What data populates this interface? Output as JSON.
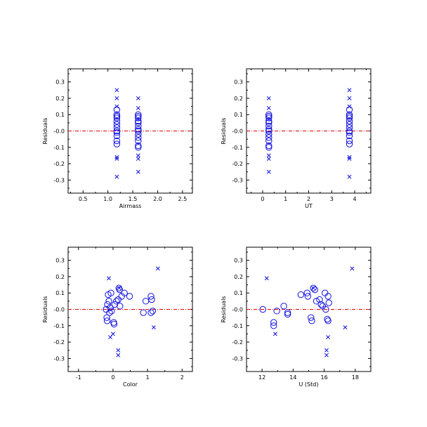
{
  "chart_data": [
    {
      "type": "scatter",
      "xlabel": "Airmass",
      "ylabel": "Residuals",
      "xlim": [
        0.2,
        2.7
      ],
      "ylim": [
        -0.38,
        0.38
      ],
      "xticks": [
        0.5,
        1.0,
        1.5,
        2.0,
        2.5
      ],
      "xtick_labels": [
        "0.5",
        "1.0",
        "1.5",
        "2.0",
        "2.5"
      ],
      "yticks": [
        -0.3,
        -0.2,
        -0.1,
        0.0,
        0.1,
        0.2,
        0.3
      ],
      "ytick_labels": [
        "-0.3",
        "-0.2",
        "-0.1",
        "-0.0",
        "0.1",
        "0.2",
        "0.3"
      ],
      "reference_line_y": 0.0,
      "circles": [
        [
          1.18,
          0.13
        ],
        [
          1.18,
          0.1
        ],
        [
          1.18,
          0.09
        ],
        [
          1.18,
          0.08
        ],
        [
          1.18,
          0.06
        ],
        [
          1.18,
          0.04
        ],
        [
          1.18,
          0.02
        ],
        [
          1.18,
          0.0
        ],
        [
          1.18,
          -0.01
        ],
        [
          1.18,
          -0.03
        ],
        [
          1.18,
          -0.06
        ],
        [
          1.18,
          -0.08
        ],
        [
          1.61,
          0.1
        ],
        [
          1.61,
          0.09
        ],
        [
          1.61,
          0.08
        ],
        [
          1.61,
          0.06
        ],
        [
          1.61,
          0.05
        ],
        [
          1.61,
          0.03
        ],
        [
          1.61,
          0.01
        ],
        [
          1.61,
          0.0
        ],
        [
          1.61,
          -0.02
        ],
        [
          1.61,
          -0.04
        ],
        [
          1.61,
          -0.06
        ],
        [
          1.61,
          -0.09
        ],
        [
          1.61,
          -0.1
        ]
      ],
      "crosses": [
        [
          1.18,
          0.25
        ],
        [
          1.18,
          0.2
        ],
        [
          1.18,
          0.15
        ],
        [
          1.18,
          -0.16
        ],
        [
          1.18,
          -0.17
        ],
        [
          1.18,
          -0.28
        ],
        [
          1.61,
          0.2
        ],
        [
          1.61,
          0.14
        ],
        [
          1.61,
          -0.15
        ],
        [
          1.61,
          -0.17
        ],
        [
          1.61,
          -0.25
        ]
      ]
    },
    {
      "type": "scatter",
      "xlabel": "UT",
      "ylabel": "Residuals",
      "xlim": [
        -0.7,
        4.7
      ],
      "ylim": [
        -0.38,
        0.38
      ],
      "xticks": [
        0,
        1,
        2,
        3,
        4
      ],
      "xtick_labels": [
        "0",
        "1",
        "2",
        "3",
        "4"
      ],
      "yticks": [
        -0.3,
        -0.2,
        -0.1,
        0.0,
        0.1,
        0.2,
        0.3
      ],
      "ytick_labels": [
        "-0.3",
        "-0.2",
        "-0.1",
        "-0.0",
        "0.1",
        "0.2",
        "0.3"
      ],
      "reference_line_y": 0.0,
      "circles": [
        [
          0.27,
          0.1
        ],
        [
          0.27,
          0.09
        ],
        [
          0.27,
          0.08
        ],
        [
          0.27,
          0.06
        ],
        [
          0.27,
          0.05
        ],
        [
          0.27,
          0.03
        ],
        [
          0.27,
          0.01
        ],
        [
          0.27,
          0.0
        ],
        [
          0.27,
          -0.02
        ],
        [
          0.27,
          -0.04
        ],
        [
          0.27,
          -0.06
        ],
        [
          0.27,
          -0.09
        ],
        [
          0.27,
          -0.1
        ],
        [
          3.77,
          0.13
        ],
        [
          3.77,
          0.1
        ],
        [
          3.77,
          0.09
        ],
        [
          3.77,
          0.08
        ],
        [
          3.77,
          0.06
        ],
        [
          3.77,
          0.04
        ],
        [
          3.77,
          0.02
        ],
        [
          3.77,
          0.0
        ],
        [
          3.77,
          -0.01
        ],
        [
          3.77,
          -0.03
        ],
        [
          3.77,
          -0.06
        ],
        [
          3.77,
          -0.08
        ]
      ],
      "crosses": [
        [
          0.27,
          0.2
        ],
        [
          0.27,
          0.14
        ],
        [
          0.27,
          -0.15
        ],
        [
          0.27,
          -0.17
        ],
        [
          0.27,
          -0.25
        ],
        [
          3.77,
          0.25
        ],
        [
          3.77,
          0.2
        ],
        [
          3.77,
          0.15
        ],
        [
          3.77,
          -0.16
        ],
        [
          3.77,
          -0.17
        ],
        [
          3.77,
          -0.28
        ]
      ]
    },
    {
      "type": "scatter",
      "xlabel": "Color",
      "ylabel": "Residuals",
      "xlim": [
        -1.3,
        2.3
      ],
      "ylim": [
        -0.38,
        0.38
      ],
      "xticks": [
        -1,
        0,
        1,
        2
      ],
      "xtick_labels": [
        "-1",
        "0",
        "1",
        "2"
      ],
      "yticks": [
        -0.3,
        -0.2,
        -0.1,
        0.0,
        0.1,
        0.2,
        0.3
      ],
      "ytick_labels": [
        "-0.3",
        "-0.2",
        "-0.1",
        "-0.0",
        "0.1",
        "0.2",
        "0.3"
      ],
      "reference_line_y": 0.0,
      "circles": [
        [
          -0.2,
          0.0
        ],
        [
          -0.18,
          -0.05
        ],
        [
          -0.17,
          -0.07
        ],
        [
          -0.16,
          0.03
        ],
        [
          -0.14,
          0.09
        ],
        [
          -0.12,
          0.05
        ],
        [
          -0.1,
          -0.02
        ],
        [
          -0.08,
          0.01
        ],
        [
          -0.06,
          0.1
        ],
        [
          -0.04,
          -0.01
        ],
        [
          0.02,
          -0.08
        ],
        [
          0.03,
          -0.09
        ],
        [
          0.05,
          0.03
        ],
        [
          0.1,
          0.05
        ],
        [
          0.15,
          0.06
        ],
        [
          0.17,
          0.13
        ],
        [
          0.19,
          0.12
        ],
        [
          0.2,
          0.02
        ],
        [
          0.25,
          0.08
        ],
        [
          0.33,
          0.1
        ],
        [
          0.48,
          0.08
        ],
        [
          0.88,
          -0.02
        ],
        [
          0.95,
          0.05
        ],
        [
          1.1,
          0.08
        ],
        [
          1.12,
          0.06
        ],
        [
          1.15,
          -0.01
        ],
        [
          1.1,
          -0.02
        ]
      ],
      "crosses": [
        [
          -0.12,
          0.19
        ],
        [
          -0.08,
          -0.17
        ],
        [
          0.0,
          -0.15
        ],
        [
          0.15,
          -0.25
        ],
        [
          0.15,
          -0.28
        ],
        [
          0.18,
          0.13
        ],
        [
          1.18,
          -0.11
        ],
        [
          1.3,
          0.25
        ]
      ]
    },
    {
      "type": "scatter",
      "xlabel": "U (Std)",
      "ylabel": "Residuals",
      "xlim": [
        11.0,
        19.0
      ],
      "ylim": [
        -0.38,
        0.38
      ],
      "xticks": [
        12,
        14,
        16,
        18
      ],
      "xtick_labels": [
        "12",
        "14",
        "16",
        "18"
      ],
      "yticks": [
        -0.3,
        -0.2,
        -0.1,
        0.0,
        0.1,
        0.2,
        0.3
      ],
      "ytick_labels": [
        "-0.3",
        "-0.2",
        "-0.1",
        "-0.0",
        "0.1",
        "0.2",
        "0.3"
      ],
      "reference_line_y": 0.0,
      "circles": [
        [
          12.05,
          0.0
        ],
        [
          12.75,
          -0.08
        ],
        [
          12.75,
          -0.1
        ],
        [
          12.95,
          -0.01
        ],
        [
          13.4,
          0.02
        ],
        [
          13.65,
          -0.02
        ],
        [
          13.65,
          -0.03
        ],
        [
          14.5,
          0.09
        ],
        [
          14.9,
          0.1
        ],
        [
          14.95,
          0.08
        ],
        [
          15.15,
          -0.05
        ],
        [
          15.2,
          -0.07
        ],
        [
          15.3,
          0.13
        ],
        [
          15.4,
          0.12
        ],
        [
          15.5,
          0.05
        ],
        [
          15.7,
          0.06
        ],
        [
          15.8,
          0.03
        ],
        [
          15.9,
          0.02
        ],
        [
          16.05,
          0.1
        ],
        [
          16.1,
          0.0
        ],
        [
          16.2,
          -0.06
        ],
        [
          16.25,
          0.08
        ],
        [
          16.25,
          -0.07
        ],
        [
          16.3,
          0.04
        ]
      ],
      "crosses": [
        [
          12.3,
          0.19
        ],
        [
          12.85,
          -0.15
        ],
        [
          15.3,
          0.13
        ],
        [
          16.15,
          -0.25
        ],
        [
          16.15,
          -0.28
        ],
        [
          16.25,
          -0.17
        ],
        [
          17.35,
          -0.11
        ],
        [
          17.8,
          0.25
        ]
      ]
    }
  ]
}
